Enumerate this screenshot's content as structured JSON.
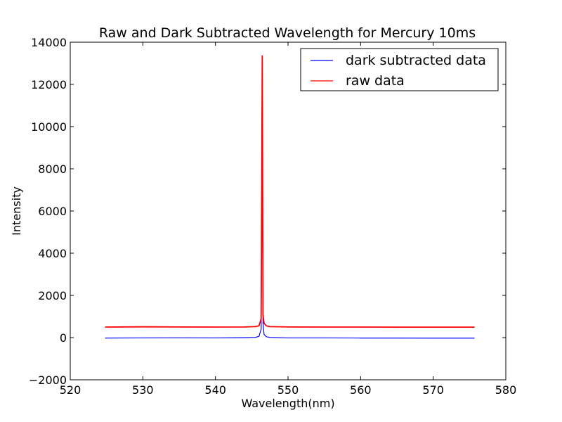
{
  "chart_data": {
    "type": "line",
    "title": "Raw and Dark Subtracted Wavelength for Mercury 10ms",
    "xlabel": "Wavelength(nm)",
    "ylabel": "Intensity",
    "xlim": [
      520,
      580
    ],
    "ylim": [
      -2000,
      14000
    ],
    "xticks": [
      520,
      530,
      540,
      550,
      560,
      570,
      580
    ],
    "yticks": [
      -2000,
      0,
      2000,
      4000,
      6000,
      8000,
      10000,
      12000,
      14000
    ],
    "xtick_labels": [
      "520",
      "530",
      "540",
      "550",
      "560",
      "570",
      "580"
    ],
    "ytick_labels": [
      "−2000",
      "0",
      "2000",
      "4000",
      "6000",
      "8000",
      "10000",
      "12000",
      "14000"
    ],
    "grid": false,
    "legend_position": "top-right",
    "series": [
      {
        "name": "dark subtracted data",
        "color": "#0000ff",
        "x": [
          524.8,
          530.0,
          535.0,
          540.0,
          544.0,
          545.5,
          546.0,
          546.3,
          546.45,
          546.55,
          546.7,
          547.0,
          547.5,
          550.0,
          555.0,
          560.0,
          565.0,
          570.0,
          575.7
        ],
        "y": [
          -20,
          -15,
          -10,
          -15,
          -5,
          10,
          60,
          400,
          12900,
          700,
          150,
          40,
          10,
          -15,
          -15,
          -20,
          -20,
          -25,
          -25
        ]
      },
      {
        "name": "raw data",
        "color": "#ff0000",
        "x": [
          524.8,
          530.0,
          535.0,
          540.0,
          544.0,
          545.5,
          546.0,
          546.3,
          546.45,
          546.55,
          546.7,
          547.0,
          547.5,
          550.0,
          555.0,
          560.0,
          565.0,
          570.0,
          575.7
        ],
        "y": [
          500,
          510,
          505,
          500,
          505,
          520,
          560,
          900,
          13350,
          1100,
          680,
          560,
          520,
          505,
          500,
          500,
          495,
          495,
          495
        ]
      }
    ]
  }
}
